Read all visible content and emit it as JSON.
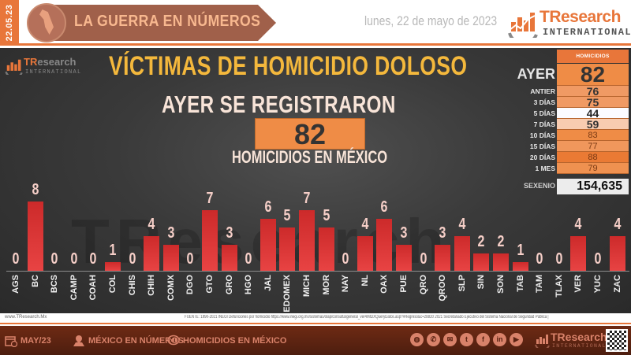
{
  "header": {
    "date_strip": "22.05.23",
    "banner_title": "LA GUERRA EN NÚMEROS",
    "date_text": "lunes, 22 de mayo de 2023",
    "logo": {
      "brand_tr": "TR",
      "brand_rest": "esearch",
      "sub": "INTERNATIONAL"
    }
  },
  "main": {
    "small_logo": {
      "brand_tr": "TR",
      "brand_rest": "esearch",
      "sub": "INTERNATIONAL"
    },
    "title": "VÍCTIMAS DE HOMICIDIO DOLOSO",
    "subtitle": "AYER SE REGISTRARON",
    "big_number": "82",
    "caption": "HOMICIDIOS EN MÉXICO",
    "watermark": "TResearch"
  },
  "stats": {
    "header": "HOMICIDIOS",
    "rows": [
      {
        "label": "AYER",
        "value": "82",
        "bg": "#ef8c46",
        "color": "#333333"
      },
      {
        "label": "ANTIER",
        "value": "76",
        "bg": "#f09a64",
        "color": "#333333"
      },
      {
        "label": "3 DÍAS",
        "value": "75",
        "bg": "#f09a64",
        "color": "#333333"
      },
      {
        "label": "5 DÍAS",
        "value": "44",
        "bg": "#fbfbff",
        "color": "#222222"
      },
      {
        "label": "7 DÍAS",
        "value": "59",
        "bg": "#f8ccb0",
        "color": "#333333"
      },
      {
        "label": "10 DÍAS",
        "value": "83",
        "bg": "#ef8c46",
        "color": "#7a3a14"
      },
      {
        "label": "15 DÍAS",
        "value": "77",
        "bg": "#f0975c",
        "color": "#7a3a14"
      },
      {
        "label": "20 DÍAS",
        "value": "88",
        "bg": "#ea7a34",
        "color": "#7a3a14"
      },
      {
        "label": "1 MES",
        "value": "79",
        "bg": "#ef9150",
        "color": "#7a3a14"
      }
    ],
    "sexenio_label": "SEXENIO",
    "sexenio_value": "154,635"
  },
  "chart_data": {
    "type": "bar",
    "title": "VÍCTIMAS DE HOMICIDIO DOLOSO",
    "xlabel": "",
    "ylabel": "",
    "ylim": [
      0,
      8
    ],
    "grid": false,
    "legend": null,
    "categories": [
      "AGS",
      "BC",
      "BCS",
      "CAMP",
      "COAH",
      "COL",
      "CHIS",
      "CHIH",
      "COMX",
      "DGO",
      "GTO",
      "GRO",
      "HGO",
      "JAL",
      "EDOMEX",
      "MICH",
      "MOR",
      "NAY",
      "NL",
      "OAX",
      "PUE",
      "QRO",
      "QROO",
      "SLP",
      "SIN",
      "SON",
      "TAB",
      "TAM",
      "TLAX",
      "VER",
      "YUC",
      "ZAC"
    ],
    "values": [
      0,
      8,
      0,
      0,
      0,
      1,
      0,
      4,
      3,
      0,
      7,
      3,
      0,
      6,
      5,
      7,
      5,
      0,
      4,
      6,
      3,
      0,
      3,
      4,
      2,
      2,
      1,
      0,
      0,
      4,
      0,
      4
    ],
    "bar_color": "#dd3434"
  },
  "footer": {
    "website": "www.TResearch.Mx",
    "source": "FUENTE: 1990-2021 INEGI Defunciones por homicidio https://www.inegi.org.mx/sistemas/olap/consulta/general_ver4/MDXQueryDatos.asp?#Regreso&c=28820  2021 Secretariado Ejecutivo del Sistema Nacional de Seguridad Pública |",
    "items": [
      "MAY/23",
      "MÉXICO EN NÚMEROS",
      "HOMICIDIOS EN MÉXICO"
    ],
    "social": [
      "web",
      "whatsapp",
      "email",
      "twitter",
      "facebook",
      "linkedin",
      "youtube"
    ],
    "logo": {
      "brand_tr": "TR",
      "brand_rest": "esearch",
      "sub": "INTERNATIONAL"
    }
  }
}
